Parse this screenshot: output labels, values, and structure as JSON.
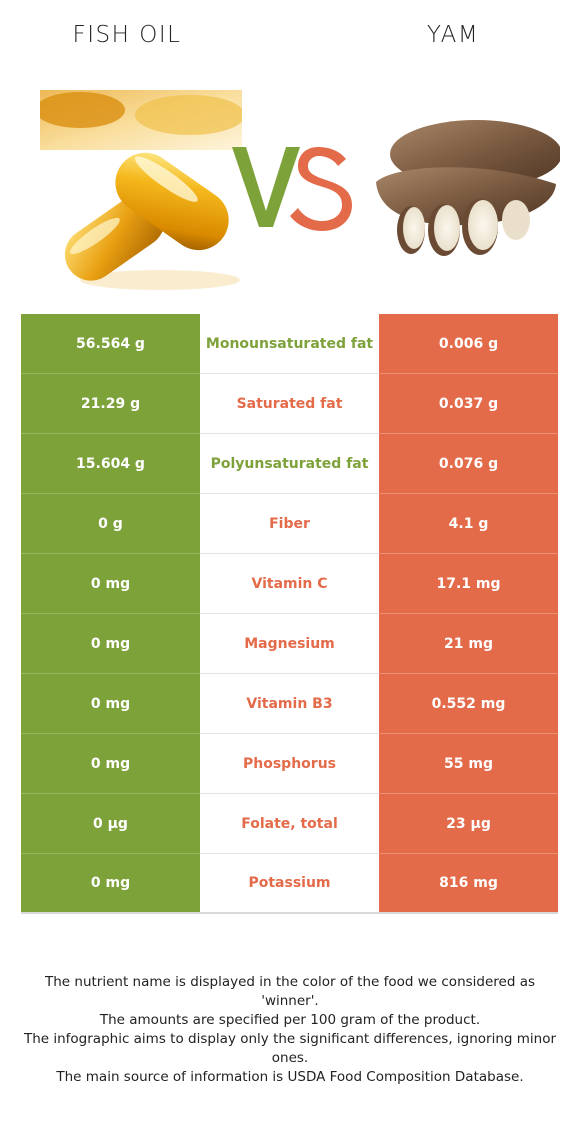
{
  "header": {
    "left_food": "FISH OIL",
    "right_food": "YAM",
    "vs_letter_v": "V",
    "vs_letter_s": "S"
  },
  "colors": {
    "left_winner": "#7ea23a",
    "right_winner": "#e46b4a"
  },
  "images": {
    "left": "fish-oil-capsules-image",
    "right": "yam-tubers-image"
  },
  "rows": [
    {
      "left": "56.564 g",
      "nutrient": "Monounsaturated fat",
      "right": "0.006 g",
      "winner": "left"
    },
    {
      "left": "21.29 g",
      "nutrient": "Saturated fat",
      "right": "0.037 g",
      "winner": "right"
    },
    {
      "left": "15.604 g",
      "nutrient": "Polyunsaturated fat",
      "right": "0.076 g",
      "winner": "left"
    },
    {
      "left": "0 g",
      "nutrient": "Fiber",
      "right": "4.1 g",
      "winner": "right"
    },
    {
      "left": "0 mg",
      "nutrient": "Vitamin C",
      "right": "17.1 mg",
      "winner": "right"
    },
    {
      "left": "0 mg",
      "nutrient": "Magnesium",
      "right": "21 mg",
      "winner": "right"
    },
    {
      "left": "0 mg",
      "nutrient": "Vitamin B3",
      "right": "0.552 mg",
      "winner": "right"
    },
    {
      "left": "0 mg",
      "nutrient": "Phosphorus",
      "right": "55 mg",
      "winner": "right"
    },
    {
      "left": "0 µg",
      "nutrient": "Folate, total",
      "right": "23 µg",
      "winner": "right"
    },
    {
      "left": "0 mg",
      "nutrient": "Potassium",
      "right": "816 mg",
      "winner": "right"
    }
  ],
  "footnote": {
    "line1": "The nutrient name is displayed in the color of the food we considered as 'winner'.",
    "line2": "The amounts are specified per 100 gram of the product.",
    "line3": "The infographic aims to display only the significant differences, ignoring minor ones.",
    "line4": "The main source of information is USDA Food Composition Database."
  }
}
